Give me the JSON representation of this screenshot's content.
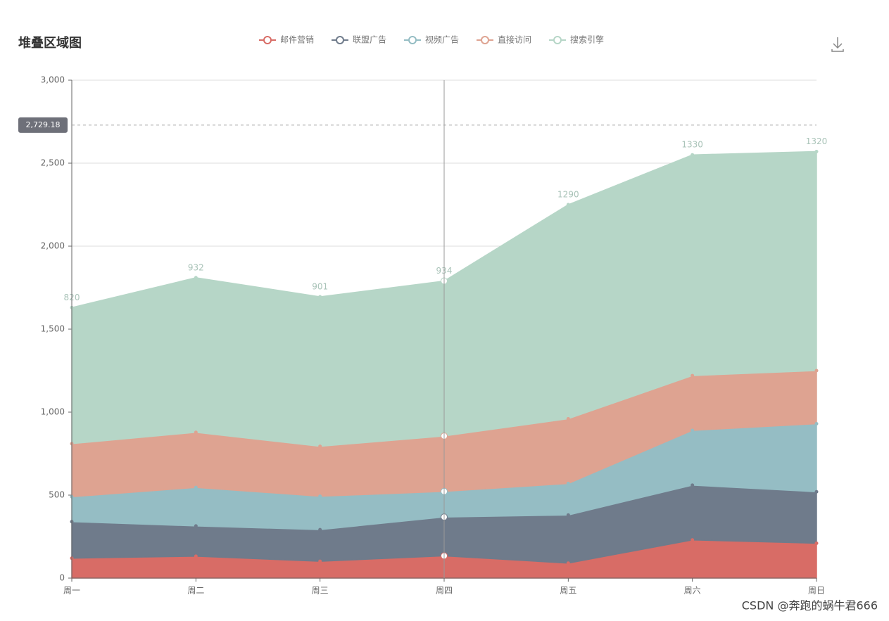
{
  "chart_data": {
    "type": "stacked_area",
    "title": "堆叠区域图",
    "categories": [
      "周一",
      "周二",
      "周三",
      "周四",
      "周五",
      "周六",
      "周日"
    ],
    "series": [
      {
        "name": "邮件营销",
        "color": "#d86c66",
        "values": [
          120,
          132,
          101,
          134,
          90,
          230,
          210
        ]
      },
      {
        "name": "联盟广告",
        "color": "#6f7b8b",
        "values": [
          220,
          182,
          191,
          234,
          290,
          330,
          310
        ]
      },
      {
        "name": "视频广告",
        "color": "#95bdc4",
        "values": [
          150,
          232,
          201,
          154,
          190,
          330,
          410
        ]
      },
      {
        "name": "直接访问",
        "color": "#dea391",
        "values": [
          320,
          332,
          301,
          334,
          390,
          330,
          320
        ]
      },
      {
        "name": "搜索引擎",
        "color": "#b6d6c7",
        "values": [
          820,
          932,
          901,
          934,
          1290,
          1330,
          1320
        ]
      }
    ],
    "ylim": [
      0,
      3000
    ],
    "yticks": [
      0,
      500,
      {
        "value": 1000,
        "label": "1,000"
      },
      {
        "value": 1500,
        "label": "1,500"
      },
      {
        "value": 2000,
        "label": "2,000"
      },
      {
        "value": 2500,
        "label": "2,500"
      },
      {
        "value": 3000,
        "label": "3,000"
      }
    ],
    "grid": true,
    "axis_pointer": {
      "value": 2729.18,
      "label": "2,729.18"
    },
    "watermark": "CSDN @奔跑的蜗牛君666"
  }
}
